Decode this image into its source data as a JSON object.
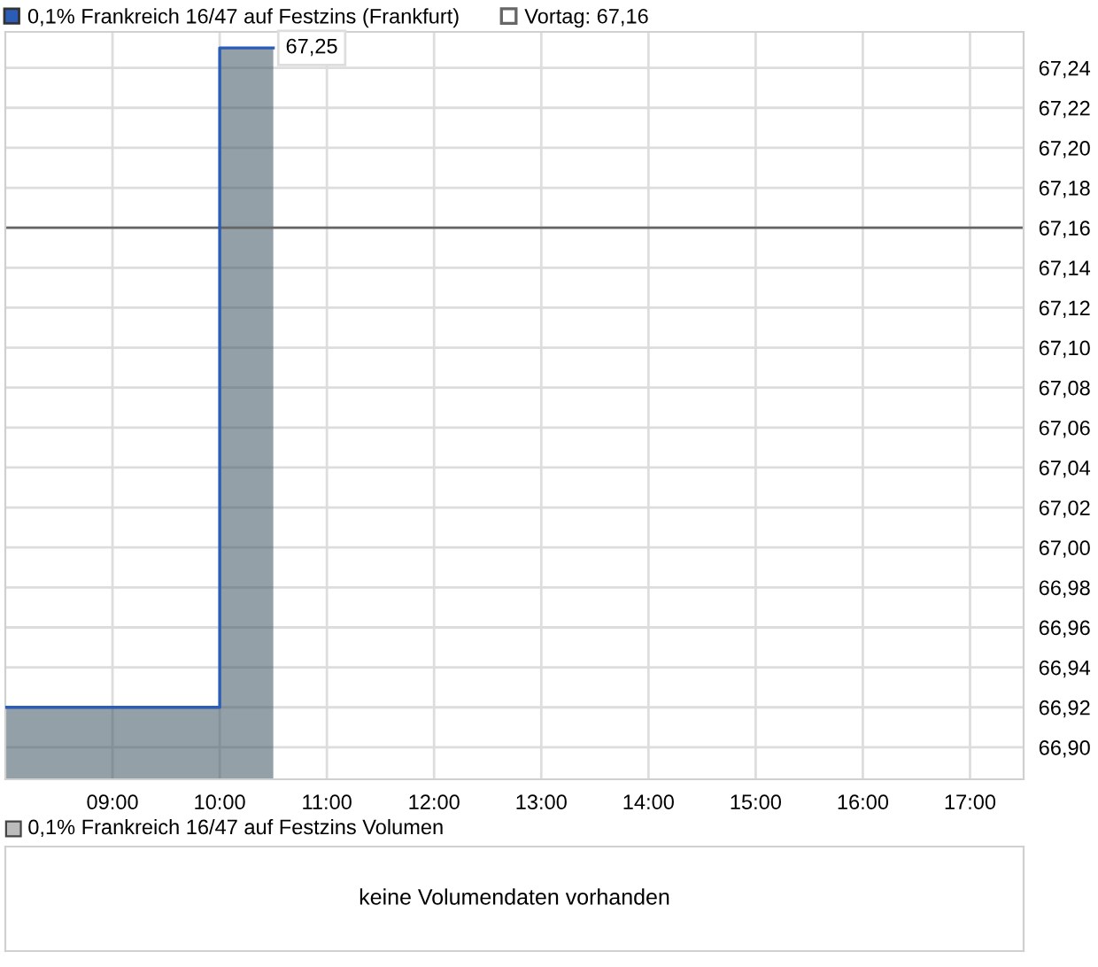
{
  "chart_data": [
    {
      "type": "area",
      "x": [
        8.0,
        10.0,
        10.0,
        10.0,
        10.5
      ],
      "series": [
        {
          "name": "0,1% Frankreich 16/47 auf Festzins (Frankfurt)",
          "color": "#2a5cb8",
          "values": [
            66.92,
            66.92,
            67.09,
            67.25,
            67.25
          ]
        }
      ],
      "xlim": [
        8.0,
        17.5
      ],
      "xticks": [
        {
          "value": 9,
          "label": "09:00"
        },
        {
          "value": 10,
          "label": "10:00"
        },
        {
          "value": 11,
          "label": "11:00"
        },
        {
          "value": 12,
          "label": "12:00"
        },
        {
          "value": 13,
          "label": "13:00"
        },
        {
          "value": 14,
          "label": "14:00"
        },
        {
          "value": 15,
          "label": "15:00"
        },
        {
          "value": 16,
          "label": "16:00"
        },
        {
          "value": 17,
          "label": "17:00"
        }
      ],
      "ylim": [
        66.884,
        67.258
      ],
      "yticks": [
        {
          "value": 66.9,
          "label": "66,90"
        },
        {
          "value": 66.92,
          "label": "66,92"
        },
        {
          "value": 66.94,
          "label": "66,94"
        },
        {
          "value": 66.96,
          "label": "66,96"
        },
        {
          "value": 66.98,
          "label": "66,98"
        },
        {
          "value": 67.0,
          "label": "67,00"
        },
        {
          "value": 67.02,
          "label": "67,02"
        },
        {
          "value": 67.04,
          "label": "67,04"
        },
        {
          "value": 67.06,
          "label": "67,06"
        },
        {
          "value": 67.08,
          "label": "67,08"
        },
        {
          "value": 67.1,
          "label": "67,10"
        },
        {
          "value": 67.12,
          "label": "67,12"
        },
        {
          "value": 67.14,
          "label": "67,14"
        },
        {
          "value": 67.16,
          "label": "67,16"
        },
        {
          "value": 67.18,
          "label": "67,18"
        },
        {
          "value": 67.2,
          "label": "67,20"
        },
        {
          "value": 67.22,
          "label": "67,22"
        },
        {
          "value": 67.24,
          "label": "67,24"
        }
      ],
      "ref_lines": [
        {
          "axis": "y",
          "value": 67.16,
          "label": "Vortag: 67,16",
          "color": "#666666"
        }
      ],
      "annotations": [
        {
          "text": "67,25",
          "x": 10.5,
          "y": 67.25
        }
      ],
      "grid": true,
      "legend": "top left"
    },
    {
      "type": "other",
      "title": "0,1% Frankreich 16/47 auf Festzins Volumen",
      "annotations": [
        "keine Volumendaten vorhanden"
      ]
    }
  ]
}
